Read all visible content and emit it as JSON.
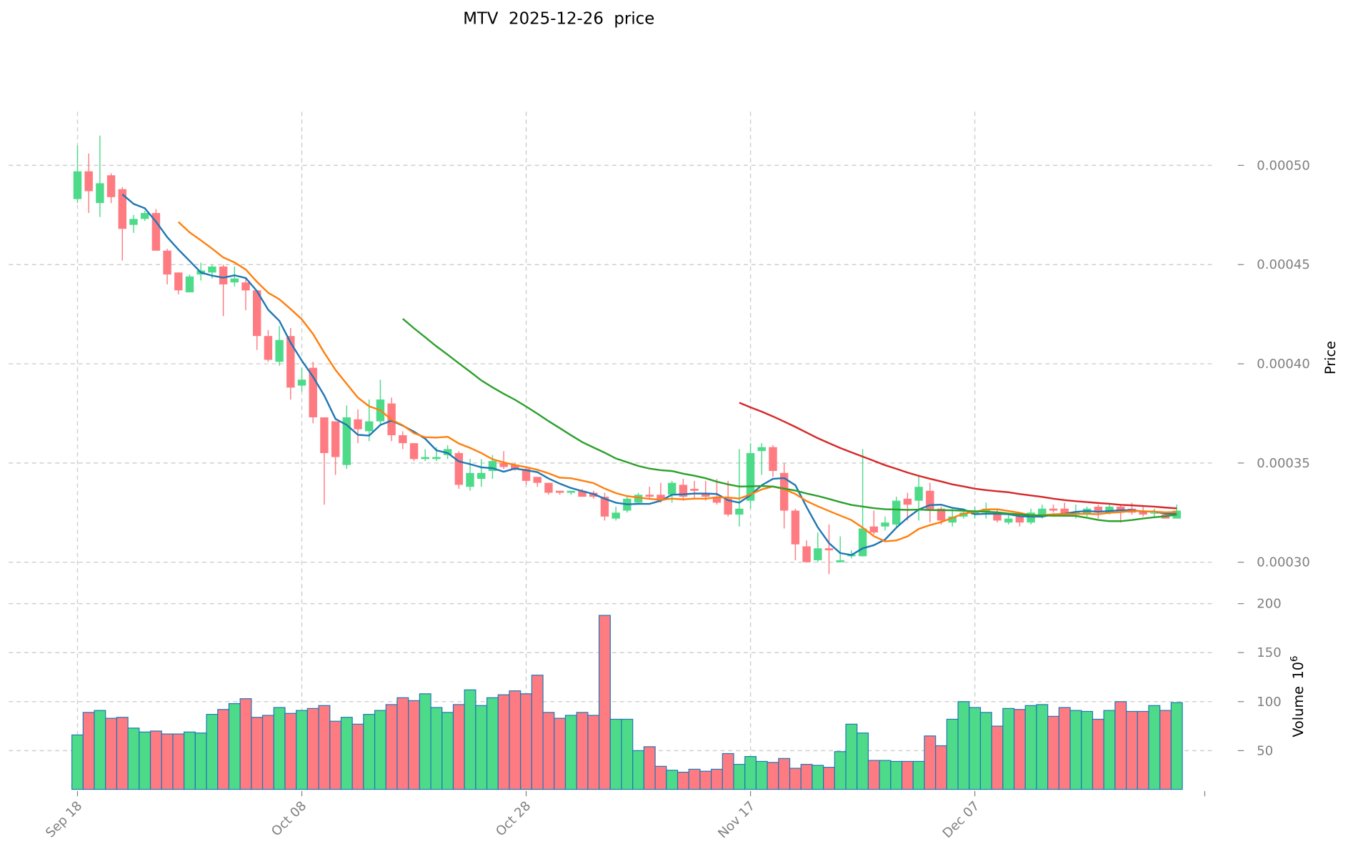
{
  "chart_data": {
    "type": "candlestick",
    "title": "MTV  2025-12-26  price",
    "ylabel": "Price",
    "volume_label": "Volume",
    "volume_exponent_label": "10",
    "volume_exponent": "6",
    "ylim": [
      0.00028,
      0.000527
    ],
    "volume_ylim": [
      10.5,
      200
    ],
    "price_ticks": [
      "0.00030",
      "0.00035",
      "0.00040",
      "0.00045",
      "0.00050"
    ],
    "price_tick_values": [
      0.0003,
      0.00035,
      0.0004,
      0.00045,
      0.0005
    ],
    "volume_ticks": [
      "50",
      "100",
      "150",
      "200"
    ],
    "volume_tick_values": [
      50,
      100,
      150,
      200
    ],
    "x_ticks": [
      {
        "label": "Sep 18",
        "index": 0
      },
      {
        "label": "Oct 08",
        "index": 20
      },
      {
        "label": "Oct 28",
        "index": 40
      },
      {
        "label": "Nov 17",
        "index": 60
      },
      {
        "label": "Dec 07",
        "index": 80
      }
    ],
    "grid": true,
    "colors": {
      "up": "#4ddb8a",
      "down": "#ff7b82",
      "volume_edge": "#1f77b4",
      "ma5": "#1f77b4",
      "ma10": "#ff7f0e",
      "ma30": "#2ca02c",
      "ma60": "#d62728"
    },
    "moving_averages": [
      5,
      10,
      30,
      60
    ],
    "ohlc": [
      [
        0.000483,
        0.00051,
        0.000481,
        0.000497
      ],
      [
        0.000497,
        0.000506,
        0.000476,
        0.000487
      ],
      [
        0.000481,
        0.000515,
        0.000474,
        0.000491
      ],
      [
        0.000495,
        0.000496,
        0.000481,
        0.000484
      ],
      [
        0.000488,
        0.000489,
        0.000452,
        0.000468
      ],
      [
        0.00047,
        0.000475,
        0.000466,
        0.000473
      ],
      [
        0.000473,
        0.000477,
        0.000472,
        0.000476
      ],
      [
        0.000476,
        0.000478,
        0.000457,
        0.000457
      ],
      [
        0.000457,
        0.000458,
        0.00044,
        0.000445
      ],
      [
        0.000446,
        0.000446,
        0.000435,
        0.000437
      ],
      [
        0.000436,
        0.000445,
        0.000436,
        0.000444
      ],
      [
        0.000445,
        0.000451,
        0.000442,
        0.000447
      ],
      [
        0.000446,
        0.00045,
        0.000443,
        0.000449
      ],
      [
        0.000449,
        0.00045,
        0.000424,
        0.00044
      ],
      [
        0.000441,
        0.000449,
        0.000439,
        0.000443
      ],
      [
        0.000441,
        0.000443,
        0.000427,
        0.000437
      ],
      [
        0.000437,
        0.000437,
        0.000407,
        0.000414
      ],
      [
        0.000414,
        0.000417,
        0.000401,
        0.000402
      ],
      [
        0.000401,
        0.000419,
        0.000399,
        0.000412
      ],
      [
        0.000414,
        0.000418,
        0.000382,
        0.000388
      ],
      [
        0.000389,
        0.000398,
        0.000386,
        0.000392
      ],
      [
        0.000398,
        0.000401,
        0.00037,
        0.000373
      ],
      [
        0.000373,
        0.000373,
        0.000329,
        0.000355
      ],
      [
        0.000371,
        0.000371,
        0.000344,
        0.000353
      ],
      [
        0.000349,
        0.000379,
        0.000347,
        0.000373
      ],
      [
        0.000372,
        0.000377,
        0.00036,
        0.000367
      ],
      [
        0.000366,
        0.000382,
        0.000361,
        0.000371
      ],
      [
        0.000371,
        0.000392,
        0.000369,
        0.000382
      ],
      [
        0.00038,
        0.000383,
        0.000361,
        0.000364
      ],
      [
        0.000364,
        0.000366,
        0.000357,
        0.00036
      ],
      [
        0.00036,
        0.00036,
        0.000351,
        0.000352
      ],
      [
        0.000352,
        0.000357,
        0.000351,
        0.000353
      ],
      [
        0.000352,
        0.000358,
        0.000351,
        0.000353
      ],
      [
        0.000354,
        0.000359,
        0.000352,
        0.000357
      ],
      [
        0.000355,
        0.000356,
        0.000337,
        0.000339
      ],
      [
        0.000338,
        0.000352,
        0.000336,
        0.000345
      ],
      [
        0.000342,
        0.000352,
        0.000338,
        0.000345
      ],
      [
        0.000346,
        0.000354,
        0.000342,
        0.000351
      ],
      [
        0.00035,
        0.000356,
        0.000347,
        0.000348
      ],
      [
        0.000349,
        0.00035,
        0.000346,
        0.000347
      ],
      [
        0.000347,
        0.000348,
        0.000339,
        0.000341
      ],
      [
        0.000343,
        0.000343,
        0.000338,
        0.00034
      ],
      [
        0.00034,
        0.00034,
        0.000334,
        0.000335
      ],
      [
        0.000336,
        0.000336,
        0.000334,
        0.000335
      ],
      [
        0.000335,
        0.000336,
        0.000334,
        0.000336
      ],
      [
        0.000336,
        0.000337,
        0.000333,
        0.000333
      ],
      [
        0.000335,
        0.000336,
        0.000332,
        0.000333
      ],
      [
        0.000333,
        0.000335,
        0.000321,
        0.000323
      ],
      [
        0.000322,
        0.000328,
        0.000321,
        0.000325
      ],
      [
        0.000326,
        0.000333,
        0.000325,
        0.000332
      ],
      [
        0.00033,
        0.000335,
        0.000329,
        0.000334
      ],
      [
        0.000334,
        0.000338,
        0.000332,
        0.000333
      ],
      [
        0.000334,
        0.00034,
        0.00033,
        0.000331
      ],
      [
        0.000334,
        0.000341,
        0.00033,
        0.00034
      ],
      [
        0.000339,
        0.000342,
        0.000331,
        0.000333
      ],
      [
        0.000337,
        0.000341,
        0.000332,
        0.000336
      ],
      [
        0.000335,
        0.000341,
        0.000331,
        0.000333
      ],
      [
        0.000333,
        0.000342,
        0.000329,
        0.00033
      ],
      [
        0.000332,
        0.000341,
        0.000323,
        0.000324
      ],
      [
        0.000324,
        0.000357,
        0.000318,
        0.000327
      ],
      [
        0.000331,
        0.00036,
        0.000327,
        0.000355
      ],
      [
        0.000356,
        0.00036,
        0.000344,
        0.000358
      ],
      [
        0.000358,
        0.000359,
        0.000343,
        0.000346
      ],
      [
        0.000345,
        0.00035,
        0.000317,
        0.000326
      ],
      [
        0.000326,
        0.000327,
        0.000301,
        0.000309
      ],
      [
        0.000308,
        0.000311,
        0.0003,
        0.0003
      ],
      [
        0.000301,
        0.000315,
        0.0003,
        0.000307
      ],
      [
        0.000307,
        0.000319,
        0.000294,
        0.000306
      ],
      [
        0.0003,
        0.000313,
        0.0003,
        0.000301
      ],
      [
        0.000303,
        0.000306,
        0.000302,
        0.000304
      ],
      [
        0.000303,
        0.000357,
        0.000303,
        0.000317
      ],
      [
        0.000318,
        0.000326,
        0.000314,
        0.000315
      ],
      [
        0.000318,
        0.000323,
        0.000316,
        0.00032
      ],
      [
        0.000319,
        0.000333,
        0.000318,
        0.000331
      ],
      [
        0.000332,
        0.000335,
        0.000321,
        0.000329
      ],
      [
        0.000331,
        0.000344,
        0.000321,
        0.000338
      ],
      [
        0.000336,
        0.00034,
        0.00032,
        0.000326
      ],
      [
        0.000327,
        0.000328,
        0.000319,
        0.000321
      ],
      [
        0.00032,
        0.000327,
        0.000318,
        0.000323
      ],
      [
        0.000323,
        0.000327,
        0.000322,
        0.000325
      ],
      [
        0.000324,
        0.000328,
        0.000322,
        0.000326
      ],
      [
        0.000325,
        0.00033,
        0.000322,
        0.000327
      ],
      [
        0.000325,
        0.000327,
        0.00032,
        0.000321
      ],
      [
        0.00032,
        0.000324,
        0.000319,
        0.000322
      ],
      [
        0.000323,
        0.000324,
        0.000318,
        0.00032
      ],
      [
        0.00032,
        0.000327,
        0.000319,
        0.000325
      ],
      [
        0.000324,
        0.000329,
        0.000322,
        0.000327
      ],
      [
        0.000327,
        0.000329,
        0.000325,
        0.000326
      ],
      [
        0.000327,
        0.00033,
        0.000323,
        0.000324
      ],
      [
        0.000324,
        0.000329,
        0.000322,
        0.000325
      ],
      [
        0.000324,
        0.000328,
        0.000323,
        0.000327
      ],
      [
        0.000328,
        0.000329,
        0.000322,
        0.000325
      ],
      [
        0.000325,
        0.000329,
        0.000324,
        0.000328
      ],
      [
        0.000328,
        0.000329,
        0.00032,
        0.000326
      ],
      [
        0.000327,
        0.00033,
        0.000324,
        0.000325
      ],
      [
        0.000326,
        0.000328,
        0.000323,
        0.000324
      ],
      [
        0.000325,
        0.000327,
        0.000323,
        0.000325
      ],
      [
        0.000324,
        0.000325,
        0.000322,
        0.000322
      ],
      [
        0.000322,
        0.000329,
        0.000322,
        0.000326
      ]
    ],
    "volume": [
      66,
      89,
      91,
      83,
      84,
      73,
      69,
      70,
      67,
      67,
      69,
      68,
      87,
      92,
      98,
      103,
      84,
      86,
      94,
      88,
      91,
      93,
      96,
      80,
      84,
      77,
      87,
      91,
      97,
      104,
      101,
      108,
      94,
      89,
      97,
      112,
      96,
      104,
      107,
      111,
      108,
      127,
      89,
      83,
      86,
      89,
      86,
      188,
      82,
      82,
      50,
      54,
      34,
      30,
      28,
      31,
      29,
      31,
      47,
      36,
      44,
      39,
      38,
      42,
      32,
      36,
      35,
      33,
      49,
      77,
      68,
      40,
      40,
      39,
      39,
      39,
      65,
      55,
      82,
      100,
      94,
      89,
      75,
      93,
      92,
      96,
      97,
      85,
      94,
      91,
      90,
      82,
      91,
      100,
      90,
      90,
      96,
      91,
      99
    ]
  }
}
